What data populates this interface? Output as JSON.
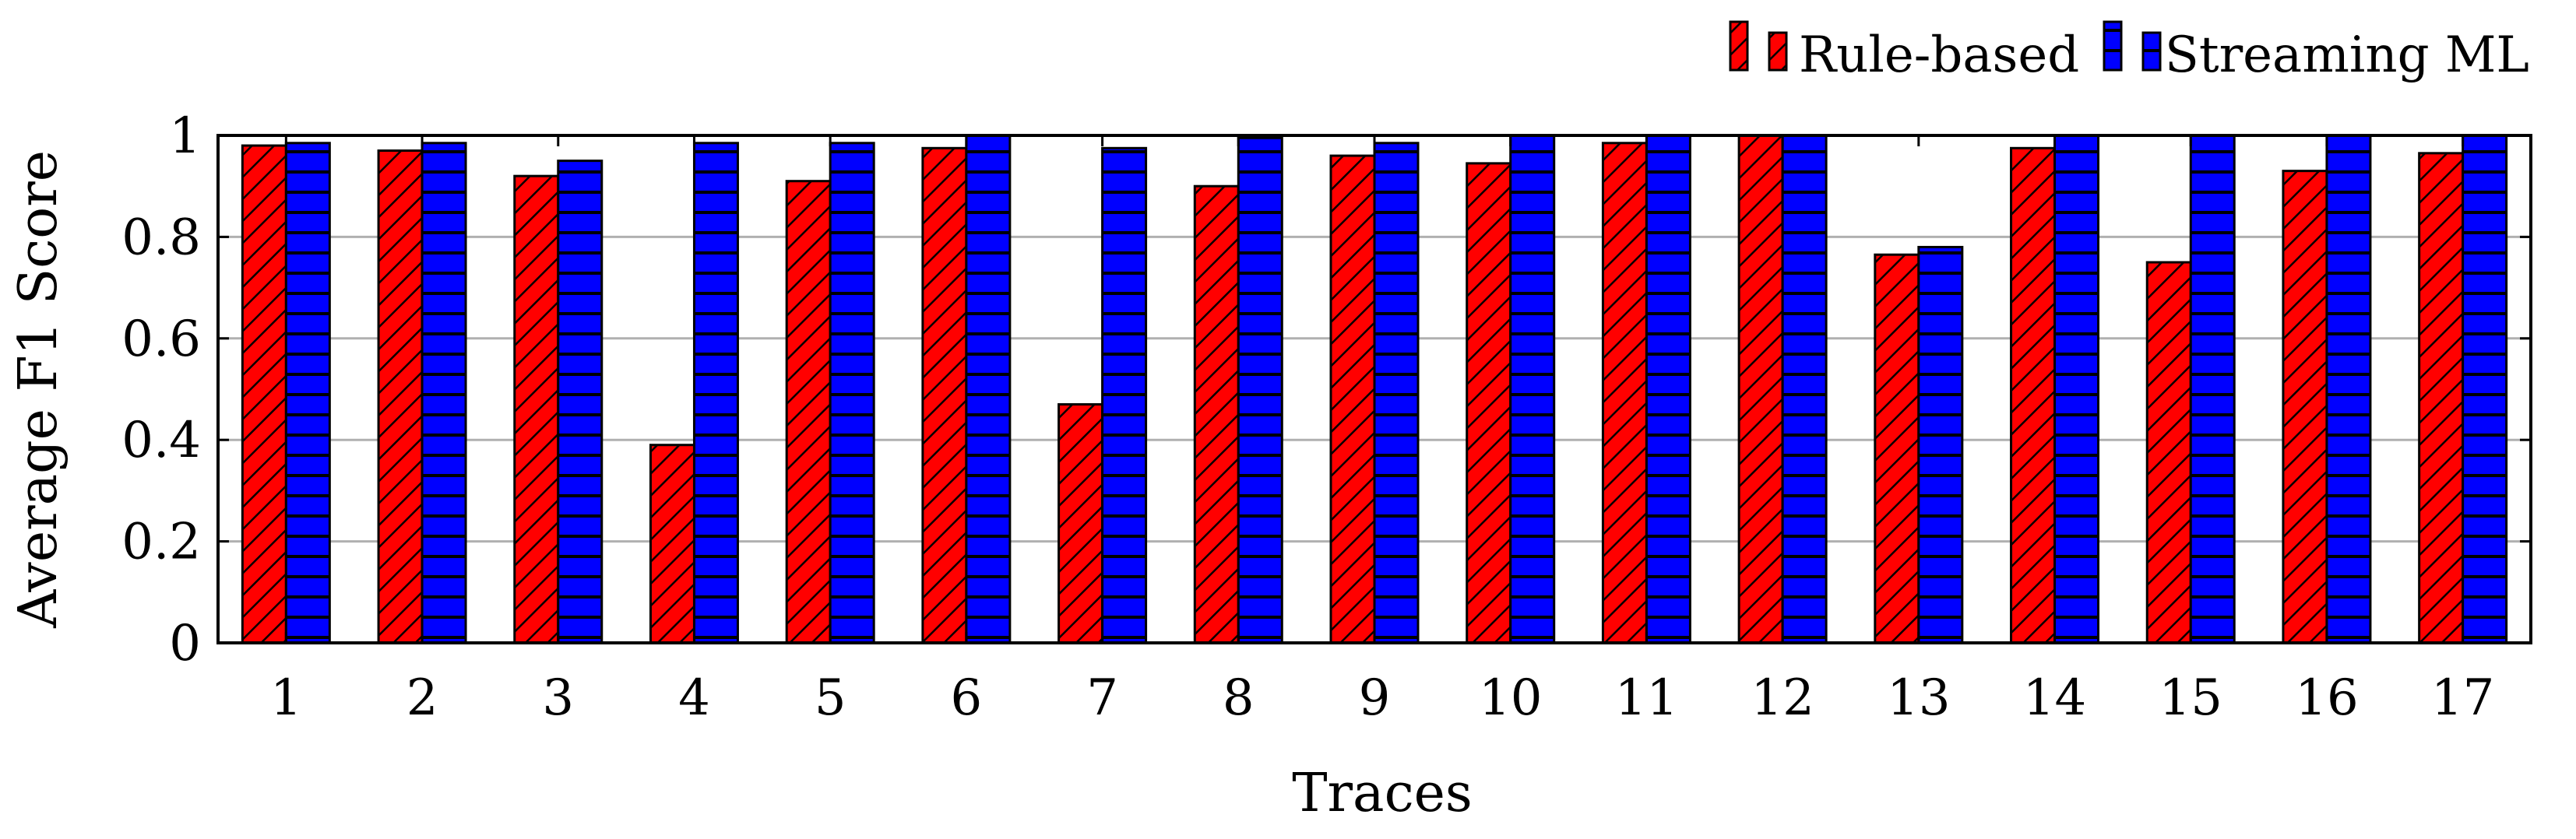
{
  "chart_data": {
    "type": "bar",
    "title": "",
    "xlabel": "Traces",
    "ylabel": "Average F1 Score",
    "categories": [
      "1",
      "2",
      "3",
      "4",
      "5",
      "6",
      "7",
      "8",
      "9",
      "10",
      "11",
      "12",
      "13",
      "14",
      "15",
      "16",
      "17"
    ],
    "series": [
      {
        "name": "Rule-based",
        "color": "#ff0000",
        "pattern": "diagonal-hatch",
        "values": [
          0.98,
          0.97,
          0.92,
          0.39,
          0.91,
          0.975,
          0.47,
          0.9,
          0.96,
          0.945,
          0.985,
          1.0,
          0.765,
          0.975,
          0.75,
          0.93,
          0.965
        ]
      },
      {
        "name": "Streaming ML",
        "color": "#0000ff",
        "pattern": "horizontal-lines",
        "values": [
          0.985,
          0.985,
          0.95,
          0.985,
          0.985,
          1.0,
          0.975,
          0.995,
          0.985,
          1.0,
          1.0,
          1.0,
          0.78,
          1.0,
          1.0,
          1.0,
          1.0
        ]
      }
    ],
    "ylim": [
      0,
      1
    ],
    "yticks": [
      "0",
      "0.2",
      "0.4",
      "0.6",
      "0.8",
      "1"
    ],
    "ytick_values": [
      0,
      0.2,
      0.4,
      0.6,
      0.8,
      1
    ],
    "grid": "horizontal",
    "legend": "top-right, above plot"
  }
}
